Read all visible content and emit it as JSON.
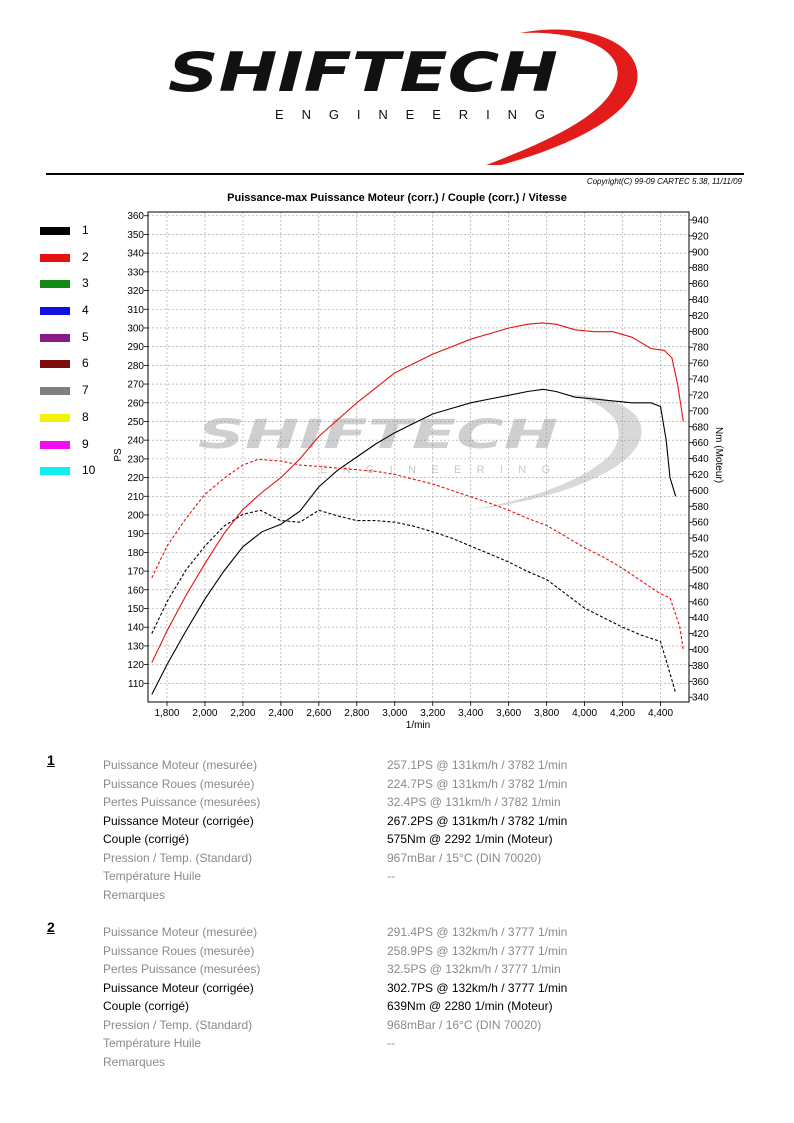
{
  "header": {
    "copyright": "Copyright(C) 99-09 CARTEC 5.38, 11/11/09",
    "logo_text": "SHIFTECH",
    "logo_subtext": "ENGINEERING",
    "watermark_text": "SHIFTECH",
    "watermark_subtext": "ENGINEERING"
  },
  "colors": {
    "brand_red": "#e21b1b",
    "watermark_grey": "#d0d0d0"
  },
  "legend": [
    {
      "label": "1",
      "color": "#000000"
    },
    {
      "label": "2",
      "color": "#e81010"
    },
    {
      "label": "3",
      "color": "#138a13"
    },
    {
      "label": "4",
      "color": "#1010e0"
    },
    {
      "label": "5",
      "color": "#8a1a8a"
    },
    {
      "label": "6",
      "color": "#7a0e0e"
    },
    {
      "label": "7",
      "color": "#808080"
    },
    {
      "label": "8",
      "color": "#f2f20a"
    },
    {
      "label": "9",
      "color": "#f20ef2"
    },
    {
      "label": "10",
      "color": "#10f0f0"
    }
  ],
  "chart_data": {
    "type": "line",
    "title": "Puissance-max Puissance Moteur (corr.) / Couple (corr.) / Vitesse",
    "xlabel": "1/min",
    "ylabel_left": "PS",
    "ylabel_right": "Nm (Moteur)",
    "xlim": [
      1700,
      4550
    ],
    "ylim_left": [
      100,
      362
    ],
    "ylim_right": [
      334,
      950
    ],
    "x_ticks": [
      1800,
      2000,
      2200,
      2400,
      2600,
      2800,
      3000,
      3200,
      3400,
      3600,
      3800,
      4000,
      4200,
      4400
    ],
    "x_tick_labels": [
      "1,800",
      "2,000",
      "2,200",
      "2,400",
      "2,600",
      "2,800",
      "3,000",
      "3,200",
      "3,400",
      "3,600",
      "3,800",
      "4,000",
      "4,200",
      "4,400"
    ],
    "y_ticks_left": [
      110,
      120,
      130,
      140,
      150,
      160,
      170,
      180,
      190,
      200,
      210,
      220,
      230,
      240,
      250,
      260,
      270,
      280,
      290,
      300,
      310,
      320,
      330,
      340,
      350,
      360
    ],
    "y_ticks_right": [
      340,
      360,
      380,
      400,
      420,
      440,
      460,
      480,
      500,
      520,
      540,
      560,
      580,
      600,
      620,
      640,
      660,
      680,
      700,
      720,
      740,
      760,
      780,
      800,
      820,
      840,
      860,
      880,
      900,
      920,
      940
    ],
    "grid": true,
    "series": [
      {
        "name": "1",
        "quantity": "power",
        "axis": "left",
        "color": "#000000",
        "dash": "solid",
        "x": [
          1720,
          1800,
          1900,
          2000,
          2100,
          2200,
          2300,
          2400,
          2500,
          2600,
          2700,
          2800,
          2900,
          3000,
          3100,
          3200,
          3300,
          3400,
          3500,
          3600,
          3700,
          3782,
          3850,
          3950,
          4050,
          4150,
          4250,
          4350,
          4400,
          4430,
          4450,
          4480
        ],
        "y": [
          104,
          120,
          138,
          155,
          170,
          183,
          191,
          195,
          202,
          215,
          224,
          231,
          238,
          244,
          249,
          254,
          257,
          260,
          262,
          264,
          266,
          267.2,
          266,
          263,
          262,
          261,
          260,
          260,
          258,
          240,
          220,
          210
        ]
      },
      {
        "name": "1",
        "quantity": "torque",
        "axis": "right",
        "color": "#000000",
        "dash": "dashed",
        "x": [
          1720,
          1800,
          1900,
          2000,
          2100,
          2200,
          2292,
          2400,
          2500,
          2600,
          2700,
          2800,
          2900,
          3000,
          3100,
          3200,
          3300,
          3400,
          3500,
          3600,
          3700,
          3800,
          3900,
          4000,
          4100,
          4200,
          4300,
          4400,
          4450,
          4480
        ],
        "y": [
          420,
          460,
          500,
          530,
          555,
          570,
          575,
          562,
          560,
          575,
          568,
          562,
          562,
          560,
          555,
          548,
          540,
          530,
          520,
          510,
          498,
          488,
          470,
          452,
          440,
          428,
          418,
          410,
          370,
          345
        ]
      },
      {
        "name": "2",
        "quantity": "power",
        "axis": "left",
        "color": "#e81010",
        "dash": "solid",
        "x": [
          1720,
          1800,
          1900,
          2000,
          2100,
          2200,
          2300,
          2400,
          2500,
          2600,
          2700,
          2800,
          2900,
          3000,
          3100,
          3200,
          3300,
          3400,
          3500,
          3600,
          3700,
          3777,
          3850,
          3950,
          4050,
          4150,
          4250,
          4350,
          4420,
          4460,
          4490,
          4520
        ],
        "y": [
          121,
          138,
          157,
          174,
          190,
          203,
          212,
          220,
          230,
          242,
          251,
          260,
          268,
          276,
          281,
          286,
          290,
          294,
          297,
          300,
          302,
          302.7,
          302,
          299,
          298,
          298,
          295,
          289,
          288,
          284,
          270,
          250
        ]
      },
      {
        "name": "2",
        "quantity": "torque",
        "axis": "right",
        "color": "#e81010",
        "dash": "dashed",
        "x": [
          1720,
          1800,
          1900,
          2000,
          2100,
          2200,
          2280,
          2400,
          2500,
          2600,
          2700,
          2800,
          2900,
          3000,
          3100,
          3200,
          3300,
          3400,
          3500,
          3600,
          3700,
          3800,
          3900,
          4000,
          4100,
          4200,
          4300,
          4400,
          4450,
          4500,
          4520
        ],
        "y": [
          490,
          530,
          565,
          595,
          615,
          632,
          639,
          637,
          632,
          630,
          628,
          626,
          624,
          620,
          614,
          608,
          600,
          592,
          584,
          575,
          565,
          556,
          542,
          528,
          516,
          502,
          486,
          470,
          465,
          430,
          400
        ]
      }
    ]
  },
  "results": [
    {
      "number": "1",
      "rows": [
        {
          "label": "Puissance Moteur (mesurée)",
          "value": "257.1PS @ 131km/h / 3782 1/min",
          "grey": true
        },
        {
          "label": "Puissance Roues (mesurée)",
          "value": "224.7PS @ 131km/h / 3782 1/min",
          "grey": true
        },
        {
          "label": "Pertes Puissance (mesurées)",
          "value": "32.4PS @ 131km/h / 3782 1/min",
          "grey": true
        },
        {
          "label": "Puissance Moteur (corrigée)",
          "value": "267.2PS @ 131km/h / 3782 1/min",
          "grey": false
        },
        {
          "label": "Couple (corrigé)",
          "value": "575Nm @ 2292 1/min (Moteur)",
          "grey": false
        },
        {
          "label": "Pression / Temp. (Standard)",
          "value": "967mBar / 15°C    (DIN 70020)",
          "grey": true
        },
        {
          "label": "Température Huile",
          "value": "--",
          "grey": true
        },
        {
          "label": "Remarques",
          "value": "",
          "grey": true
        }
      ]
    },
    {
      "number": "2",
      "rows": [
        {
          "label": "Puissance Moteur (mesurée)",
          "value": "291.4PS @ 132km/h / 3777 1/min",
          "grey": true
        },
        {
          "label": "Puissance Roues (mesurée)",
          "value": "258.9PS @ 132km/h / 3777 1/min",
          "grey": true
        },
        {
          "label": "Pertes Puissance (mesurées)",
          "value": "32.5PS @ 132km/h / 3777 1/min",
          "grey": true
        },
        {
          "label": "Puissance Moteur (corrigée)",
          "value": "302.7PS @ 132km/h / 3777 1/min",
          "grey": false
        },
        {
          "label": "Couple (corrigé)",
          "value": "639Nm @ 2280 1/min (Moteur)",
          "grey": false
        },
        {
          "label": "Pression / Temp. (Standard)",
          "value": "968mBar / 16°C    (DIN 70020)",
          "grey": true
        },
        {
          "label": "Température Huile",
          "value": "--",
          "grey": true
        },
        {
          "label": "Remarques",
          "value": "",
          "grey": true
        }
      ]
    }
  ]
}
